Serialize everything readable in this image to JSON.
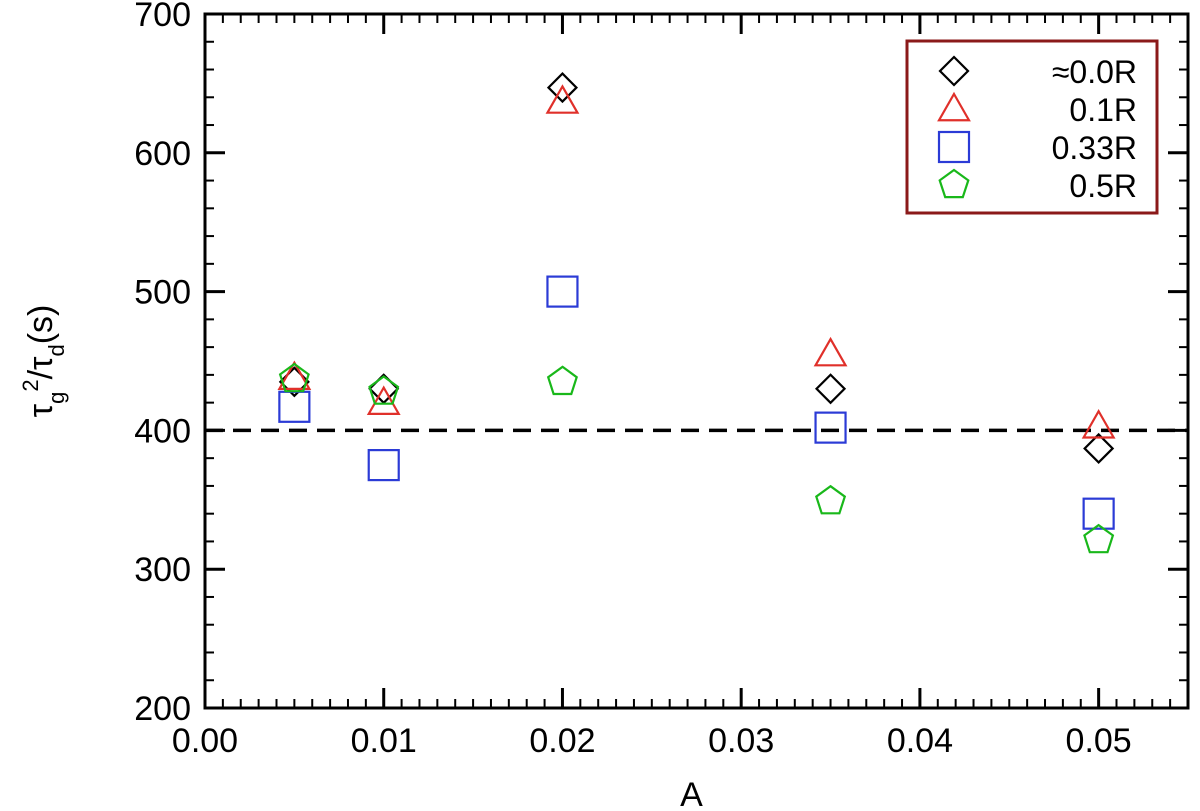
{
  "chart_data": {
    "type": "scatter",
    "title": "",
    "xlabel": "A",
    "ylabel": {
      "base": "τ",
      "sub1": "g",
      "sup": "2",
      "mid": "/τ",
      "sub2": "d",
      "tail": "(s)"
    },
    "xlim": [
      0.0,
      0.055
    ],
    "ylim": [
      200,
      700
    ],
    "x_ticks": [
      0.0,
      0.01,
      0.02,
      0.03,
      0.04,
      0.05
    ],
    "x_tick_labels": [
      "0.00",
      "0.01",
      "0.02",
      "0.03",
      "0.04",
      "0.05"
    ],
    "y_ticks": [
      200,
      300,
      400,
      500,
      600,
      700
    ],
    "y_tick_labels": [
      "200",
      "300",
      "400",
      "500",
      "600",
      "700"
    ],
    "x_minor_step": 0.001,
    "y_minor_step": 20,
    "grid": false,
    "legend_position": "top-right",
    "legend_border_color": "#8b1a1a",
    "reference_line": {
      "y": 400,
      "style": "dashed",
      "color": "#000000"
    },
    "series": [
      {
        "name": "≈0.0R",
        "marker": "diamond",
        "color": "#000000",
        "x": [
          0.005,
          0.01,
          0.02,
          0.035,
          0.05
        ],
        "y": [
          435,
          430,
          647,
          430,
          387
        ]
      },
      {
        "name": "0.1R",
        "marker": "triangle",
        "color": "#e0302a",
        "x": [
          0.005,
          0.01,
          0.02,
          0.035,
          0.05
        ],
        "y": [
          438,
          420,
          637,
          455,
          403
        ]
      },
      {
        "name": "0.33R",
        "marker": "square",
        "color": "#2b3bd6",
        "x": [
          0.005,
          0.01,
          0.02,
          0.035,
          0.05
        ],
        "y": [
          417,
          375,
          500,
          402,
          340
        ]
      },
      {
        "name": "0.5R",
        "marker": "pentagon",
        "color": "#19b81a",
        "x": [
          0.005,
          0.01,
          0.02,
          0.035,
          0.05
        ],
        "y": [
          437,
          428,
          435,
          349,
          321
        ]
      }
    ]
  }
}
